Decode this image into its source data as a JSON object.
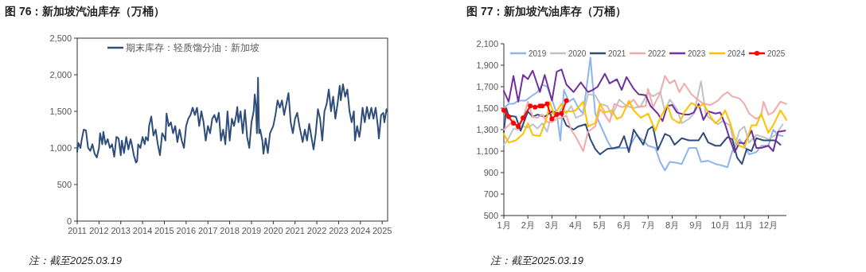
{
  "chart_data": [
    {
      "type": "line",
      "title": "图 76：新加坡汽油库存（万桶）",
      "annotations": [
        "注：截至2025.03.19"
      ],
      "legend": "top left",
      "grid": false,
      "xlim": [
        2011,
        2025.25
      ],
      "xticks": [
        2011,
        2012,
        2013,
        2014,
        2015,
        2016,
        2017,
        2018,
        2019,
        2020,
        2021,
        2022,
        2023,
        2024,
        2025
      ],
      "ylim": [
        0,
        2500
      ],
      "yticks": [
        0,
        500,
        {
          "value": 1000,
          "label": "1,000"
        },
        {
          "value": 1500,
          "label": "1,500"
        },
        {
          "value": 2000,
          "label": "2,000"
        },
        {
          "value": 2500,
          "label": "2,500"
        }
      ],
      "x": [
        2011.0,
        2011.05,
        2011.15,
        2011.2,
        2011.3,
        2011.4,
        2011.5,
        2011.6,
        2011.7,
        2011.8,
        2011.9,
        2012.0,
        2012.05,
        2012.15,
        2012.2,
        2012.3,
        2012.4,
        2012.5,
        2012.6,
        2012.7,
        2012.8,
        2012.9,
        2013.0,
        2013.05,
        2013.15,
        2013.25,
        2013.35,
        2013.45,
        2013.5,
        2013.6,
        2013.7,
        2013.75,
        2013.8,
        2013.9,
        2014.0,
        2014.1,
        2014.15,
        2014.25,
        2014.3,
        2014.4,
        2014.5,
        2014.6,
        2014.7,
        2014.8,
        2014.9,
        2015.0,
        2015.05,
        2015.1,
        2015.2,
        2015.3,
        2015.4,
        2015.5,
        2015.6,
        2015.7,
        2015.8,
        2015.9,
        2016.0,
        2016.1,
        2016.2,
        2016.3,
        2016.4,
        2016.5,
        2016.6,
        2016.7,
        2016.8,
        2016.9,
        2017.0,
        2017.1,
        2017.2,
        2017.3,
        2017.4,
        2017.5,
        2017.6,
        2017.7,
        2017.8,
        2017.9,
        2018.0,
        2018.1,
        2018.2,
        2018.3,
        2018.35,
        2018.4,
        2018.5,
        2018.6,
        2018.7,
        2018.8,
        2018.9,
        2019.0,
        2019.1,
        2019.15,
        2019.2,
        2019.25,
        2019.3,
        2019.35,
        2019.4,
        2019.5,
        2019.55,
        2019.65,
        2019.75,
        2019.85,
        2020.0,
        2020.1,
        2020.2,
        2020.3,
        2020.4,
        2020.5,
        2020.6,
        2020.7,
        2020.8,
        2020.9,
        2021.0,
        2021.1,
        2021.2,
        2021.35,
        2021.45,
        2021.55,
        2021.65,
        2021.75,
        2021.85,
        2021.95,
        2022.05,
        2022.15,
        2022.25,
        2022.35,
        2022.45,
        2022.55,
        2022.65,
        2022.75,
        2022.85,
        2022.95,
        2023.05,
        2023.1,
        2023.2,
        2023.3,
        2023.4,
        2023.5,
        2023.6,
        2023.7,
        2023.75,
        2023.85,
        2023.95,
        2024.0,
        2024.1,
        2024.2,
        2024.3,
        2024.4,
        2024.5,
        2024.6,
        2024.7,
        2024.8,
        2024.85,
        2024.95,
        2025.05,
        2025.1,
        2025.2,
        2025.22
      ],
      "series": [
        {
          "name": "期末库存：轻质馏分油：新加坡",
          "color": "#2e4d7b",
          "values": [
            950,
            1070,
            1000,
            1100,
            1250,
            1240,
            1000,
            960,
            1050,
            920,
            870,
            1000,
            1200,
            1050,
            1220,
            1050,
            1120,
            1000,
            1050,
            880,
            1150,
            1130,
            900,
            1100,
            930,
            1150,
            980,
            1120,
            1060,
            900,
            800,
            820,
            1050,
            1000,
            1150,
            1050,
            1150,
            1100,
            1300,
            1430,
            1170,
            1250,
            1050,
            900,
            1200,
            1150,
            1100,
            1470,
            1300,
            1350,
            1200,
            1300,
            1080,
            1250,
            1100,
            1000,
            1300,
            1400,
            1450,
            1550,
            1450,
            1550,
            1300,
            1500,
            1350,
            1100,
            1300,
            1200,
            1400,
            1450,
            1350,
            1480,
            1100,
            1250,
            1050,
            1500,
            1100,
            1400,
            1300,
            1450,
            1560,
            1350,
            1500,
            1200,
            1520,
            1150,
            1000,
            1350,
            1500,
            1730,
            1600,
            1200,
            1960,
            1200,
            1250,
            1100,
            920,
            1130,
            930,
            1200,
            1300,
            1450,
            1650,
            1550,
            1650,
            1450,
            1600,
            1750,
            1350,
            1200,
            1400,
            1480,
            1300,
            1080,
            1250,
            1100,
            1330,
            1150,
            980,
            1200,
            1530,
            1400,
            1100,
            1500,
            1600,
            1800,
            1500,
            1700,
            1400,
            1600,
            1850,
            1650,
            1870,
            1700,
            1800,
            1500,
            1350,
            1500,
            1100,
            1300,
            1150,
            1250,
            1550,
            1350,
            1560,
            1400,
            1550,
            1400,
            1550,
            1300,
            1130,
            1450,
            1480,
            1350,
            1530,
            1500
          ]
        }
      ]
    },
    {
      "type": "line",
      "title": "图 77：新加坡汽油库存（万桶）",
      "annotations": [
        "注：截至2025.03.19"
      ],
      "legend": "top",
      "grid": false,
      "xlim": [
        1,
        12.75
      ],
      "xticks": [
        {
          "value": 1,
          "label": "1月"
        },
        {
          "value": 2,
          "label": "2月"
        },
        {
          "value": 3,
          "label": "3月"
        },
        {
          "value": 4,
          "label": "4月"
        },
        {
          "value": 5,
          "label": "5月"
        },
        {
          "value": 6,
          "label": "6月"
        },
        {
          "value": 7,
          "label": "7月"
        },
        {
          "value": 8,
          "label": "8月"
        },
        {
          "value": 9,
          "label": "9月"
        },
        {
          "value": 10,
          "label": "10月"
        },
        {
          "value": 11,
          "label": "11月"
        },
        {
          "value": 12,
          "label": "12月"
        }
      ],
      "ylim": [
        500,
        2100
      ],
      "yticks": [
        500,
        700,
        900,
        {
          "value": 1100,
          "label": "1,100"
        },
        {
          "value": 1300,
          "label": "1,300"
        },
        {
          "value": 1500,
          "label": "1,500"
        },
        {
          "value": 1700,
          "label": "1,700"
        },
        {
          "value": 1900,
          "label": "1,900"
        },
        {
          "value": 2100,
          "label": "2,100"
        }
      ],
      "series": [
        {
          "name": "2019",
          "color": "#8fb4ec",
          "x": [
            1.0,
            1.2,
            1.4,
            1.6,
            1.9,
            2.2,
            2.4,
            2.6,
            2.8,
            3.0,
            3.2,
            3.35,
            3.5,
            3.7,
            3.9,
            4.1,
            4.3,
            4.6,
            4.8,
            5.0,
            5.3,
            5.5,
            5.8,
            6.2,
            6.5,
            6.8,
            7.0,
            7.3,
            7.5,
            7.7,
            7.9,
            8.2,
            8.4,
            8.7,
            9.0,
            9.2,
            9.5,
            9.8,
            10.0,
            10.3,
            10.5,
            10.8,
            11.0,
            11.2,
            11.5,
            11.7,
            12.0,
            12.2,
            12.4,
            12.6
          ],
          "values": [
            1500,
            1540,
            1540,
            1570,
            1570,
            1620,
            1650,
            1720,
            1700,
            1580,
            1450,
            1200,
            1670,
            1560,
            1590,
            1500,
            1450,
            1970,
            1450,
            1350,
            1200,
            1120,
            1130,
            1130,
            1250,
            1200,
            1150,
            1130,
            1000,
            920,
            1000,
            990,
            980,
            1130,
            1130,
            1000,
            1010,
            980,
            970,
            950,
            1100,
            1210,
            1150,
            1070,
            1090,
            1150,
            1150,
            1300,
            1250,
            1240
          ]
        },
        {
          "name": "2020",
          "color": "#bfc2c8",
          "x": [
            1.0,
            1.2,
            1.4,
            1.6,
            1.8,
            2.0,
            2.2,
            2.4,
            2.6,
            2.8,
            3.0,
            3.2,
            3.4,
            3.6,
            3.8,
            4.0,
            4.3,
            4.5,
            4.8,
            5.0,
            5.3,
            5.5,
            5.8,
            6.1,
            6.4,
            6.7,
            7.0,
            7.2,
            7.5,
            7.7,
            7.9,
            8.2,
            8.4,
            8.7,
            8.9,
            9.2,
            9.4,
            9.6,
            9.9,
            10.1,
            10.4,
            10.6,
            10.8,
            11.0,
            11.2,
            11.5,
            11.8,
            12.0,
            12.3,
            12.6
          ],
          "values": [
            1160,
            1220,
            1310,
            1300,
            1330,
            1320,
            1350,
            1310,
            1360,
            1280,
            1460,
            1420,
            1500,
            1450,
            1520,
            1410,
            1440,
            1630,
            1620,
            1540,
            1520,
            1430,
            1580,
            1520,
            1500,
            1520,
            1650,
            1610,
            1650,
            1470,
            1580,
            1490,
            1360,
            1400,
            1450,
            1750,
            1440,
            1400,
            1350,
            1380,
            1340,
            1150,
            1290,
            1330,
            1180,
            1250,
            1230,
            1210,
            1250,
            1350
          ]
        },
        {
          "name": "2021",
          "color": "#2f4b7c",
          "x": [
            1.0,
            1.1,
            1.2,
            1.5,
            1.7,
            2.0,
            2.2,
            2.4,
            2.7,
            3.0,
            3.2,
            3.4,
            3.6,
            3.9,
            4.1,
            4.4,
            4.6,
            4.8,
            5.0,
            5.3,
            5.6,
            5.8,
            6.0,
            6.2,
            6.4,
            6.6,
            6.8,
            7.0,
            7.2,
            7.4,
            7.7,
            7.9,
            8.1,
            8.4,
            8.7,
            9.1,
            9.3,
            9.5,
            9.8,
            10.0,
            10.3,
            10.5,
            10.7,
            10.9,
            11.1,
            11.3,
            11.5,
            11.8,
            12.0,
            12.3,
            12.5
          ],
          "values": [
            1280,
            1500,
            1430,
            1420,
            1290,
            1470,
            1420,
            1440,
            1420,
            1470,
            1460,
            1440,
            1340,
            1300,
            1330,
            1350,
            1210,
            1120,
            1070,
            1120,
            1130,
            1140,
            1240,
            1090,
            1300,
            1230,
            1160,
            1300,
            1330,
            1110,
            1260,
            1240,
            1160,
            1220,
            1200,
            1200,
            1270,
            1180,
            1150,
            1150,
            1230,
            1210,
            1040,
            980,
            1120,
            1100,
            1220,
            1200,
            1200,
            1200,
            1160
          ]
        },
        {
          "name": "2022",
          "color": "#f4a9a8",
          "x": [
            1.0,
            1.2,
            1.4,
            1.6,
            1.8,
            2.0,
            2.2,
            2.4,
            2.6,
            2.8,
            3.0,
            3.2,
            3.4,
            3.6,
            3.8,
            4.0,
            4.3,
            4.5,
            4.8,
            5.0,
            5.2,
            5.4,
            5.6,
            5.9,
            6.1,
            6.4,
            6.6,
            6.9,
            7.0,
            7.2,
            7.5,
            7.7,
            7.9,
            8.1,
            8.3,
            8.5,
            8.8,
            9.0,
            9.3,
            9.6,
            9.9,
            10.1,
            10.3,
            10.5,
            10.8,
            11.0,
            11.2,
            11.5,
            11.7,
            11.8,
            12.0,
            12.2,
            12.5,
            12.75
          ],
          "values": [
            1300,
            1340,
            1390,
            1310,
            1400,
            1560,
            1420,
            1410,
            1440,
            1370,
            1370,
            1400,
            1410,
            1430,
            1300,
            1230,
            1100,
            1280,
            1330,
            1490,
            1440,
            1370,
            1540,
            1510,
            1520,
            1580,
            1510,
            1520,
            1680,
            1510,
            1640,
            1800,
            1730,
            1760,
            1650,
            1730,
            1630,
            1590,
            1540,
            1530,
            1570,
            1620,
            1650,
            1610,
            1590,
            1540,
            1450,
            1400,
            1430,
            1560,
            1440,
            1460,
            1560,
            1540
          ]
        },
        {
          "name": "2023",
          "color": "#7030a0",
          "x": [
            1.0,
            1.2,
            1.4,
            1.6,
            1.8,
            2.0,
            2.2,
            2.5,
            2.7,
            3.0,
            3.2,
            3.4,
            3.6,
            3.9,
            4.2,
            4.5,
            4.7,
            4.9,
            5.2,
            5.4,
            5.7,
            5.9,
            6.1,
            6.4,
            6.6,
            6.9,
            7.1,
            7.4,
            7.6,
            7.8,
            8.0,
            8.2,
            8.5,
            8.7,
            8.9,
            9.1,
            9.3,
            9.5,
            9.8,
            10.0,
            10.2,
            10.4,
            10.6,
            10.8,
            11.0,
            11.3,
            11.5,
            11.7,
            12.0,
            12.2,
            12.4,
            12.7
          ],
          "values": [
            1660,
            1560,
            1800,
            1560,
            1810,
            1770,
            1850,
            1650,
            1810,
            1570,
            1840,
            1860,
            1720,
            1650,
            1740,
            1650,
            1670,
            1700,
            1820,
            1730,
            1770,
            1670,
            1790,
            1680,
            1630,
            1620,
            1520,
            1450,
            1380,
            1520,
            1530,
            1460,
            1440,
            1440,
            1460,
            1540,
            1390,
            1470,
            1450,
            1460,
            1350,
            1210,
            1090,
            1180,
            1170,
            1290,
            1130,
            1130,
            1150,
            1100,
            1280,
            1290
          ]
        },
        {
          "name": "2024",
          "color": "#ffc000",
          "x": [
            1.0,
            1.2,
            1.5,
            1.8,
            2.0,
            2.2,
            2.5,
            2.8,
            2.9,
            3.1,
            3.4,
            3.5,
            3.8,
            4.0,
            4.3,
            4.5,
            4.8,
            5.0,
            5.2,
            5.5,
            5.7,
            5.9,
            6.2,
            6.4,
            6.7,
            7.0,
            7.3,
            7.5,
            7.8,
            8.0,
            8.3,
            8.5,
            8.8,
            9.1,
            9.3,
            9.6,
            9.8,
            10.0,
            10.2,
            10.4,
            10.6,
            10.8,
            11.0,
            11.3,
            11.5,
            11.7,
            12.0,
            12.2,
            12.5,
            12.7,
            12.75
          ],
          "values": [
            1260,
            1180,
            1200,
            1260,
            1360,
            1250,
            1240,
            1420,
            1560,
            1440,
            1540,
            1470,
            1470,
            1480,
            1560,
            1330,
            1360,
            1540,
            1460,
            1480,
            1400,
            1420,
            1570,
            1480,
            1410,
            1450,
            1290,
            1410,
            1530,
            1400,
            1360,
            1460,
            1550,
            1510,
            1540,
            1420,
            1360,
            1400,
            1480,
            1370,
            1220,
            1150,
            1130,
            1340,
            1340,
            1450,
            1270,
            1340,
            1480,
            1410,
            1390
          ]
        },
        {
          "name": "2025",
          "color": "#ff0000",
          "marker": "circle",
          "x": [
            1.0,
            1.2,
            1.4,
            1.6,
            1.8,
            2.1,
            2.3,
            2.5,
            2.6,
            2.8,
            3.0,
            3.2,
            3.4,
            3.6
          ],
          "values": [
            1480,
            1420,
            1360,
            1330,
            1410,
            1520,
            1510,
            1520,
            1520,
            1540,
            1400,
            1440,
            1450,
            1570
          ]
        }
      ]
    }
  ]
}
